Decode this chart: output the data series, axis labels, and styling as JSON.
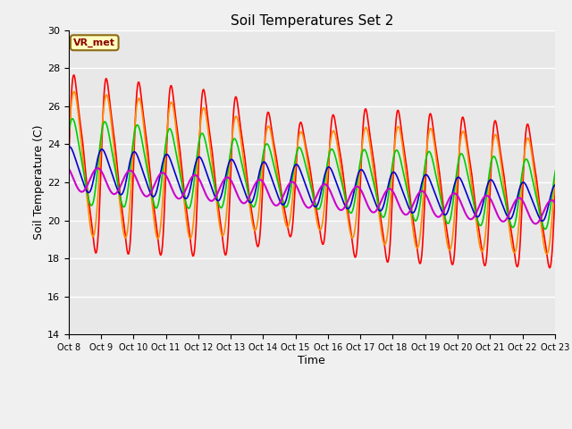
{
  "title": "Soil Temperatures Set 2",
  "xlabel": "Time",
  "ylabel": "Soil Temperature (C)",
  "ylim": [
    14,
    30
  ],
  "xlim": [
    0,
    15
  ],
  "annotation_text": "VR_met",
  "annotation_color": "#8B0000",
  "annotation_bg": "#FFFFC0",
  "annotation_border": "#8B6914",
  "background_color": "#E8E8E8",
  "fig_bg": "#F0F0F0",
  "x_tick_labels": [
    "Oct 8",
    "Oct 9",
    "Oct 10",
    "Oct 11",
    "Oct 12",
    "Oct 13",
    "Oct 14",
    "Oct 15",
    "Oct 16",
    "Oct 17",
    "Oct 18",
    "Oct 19",
    "Oct 20",
    "Oct 21",
    "Oct 22",
    "Oct 23"
  ],
  "series": {
    "Tsoil -2cm": {
      "color": "#FF0000",
      "lw": 1.2
    },
    "Tsoil -4cm": {
      "color": "#FF8C00",
      "lw": 1.2
    },
    "Tsoil -8cm": {
      "color": "#00CC00",
      "lw": 1.2
    },
    "Tsoil -16cm": {
      "color": "#0000CC",
      "lw": 1.2
    },
    "Tsoil -32cm": {
      "color": "#CC00CC",
      "lw": 1.5
    }
  },
  "grid_color": "#FFFFFF",
  "grid_lw": 1.0
}
